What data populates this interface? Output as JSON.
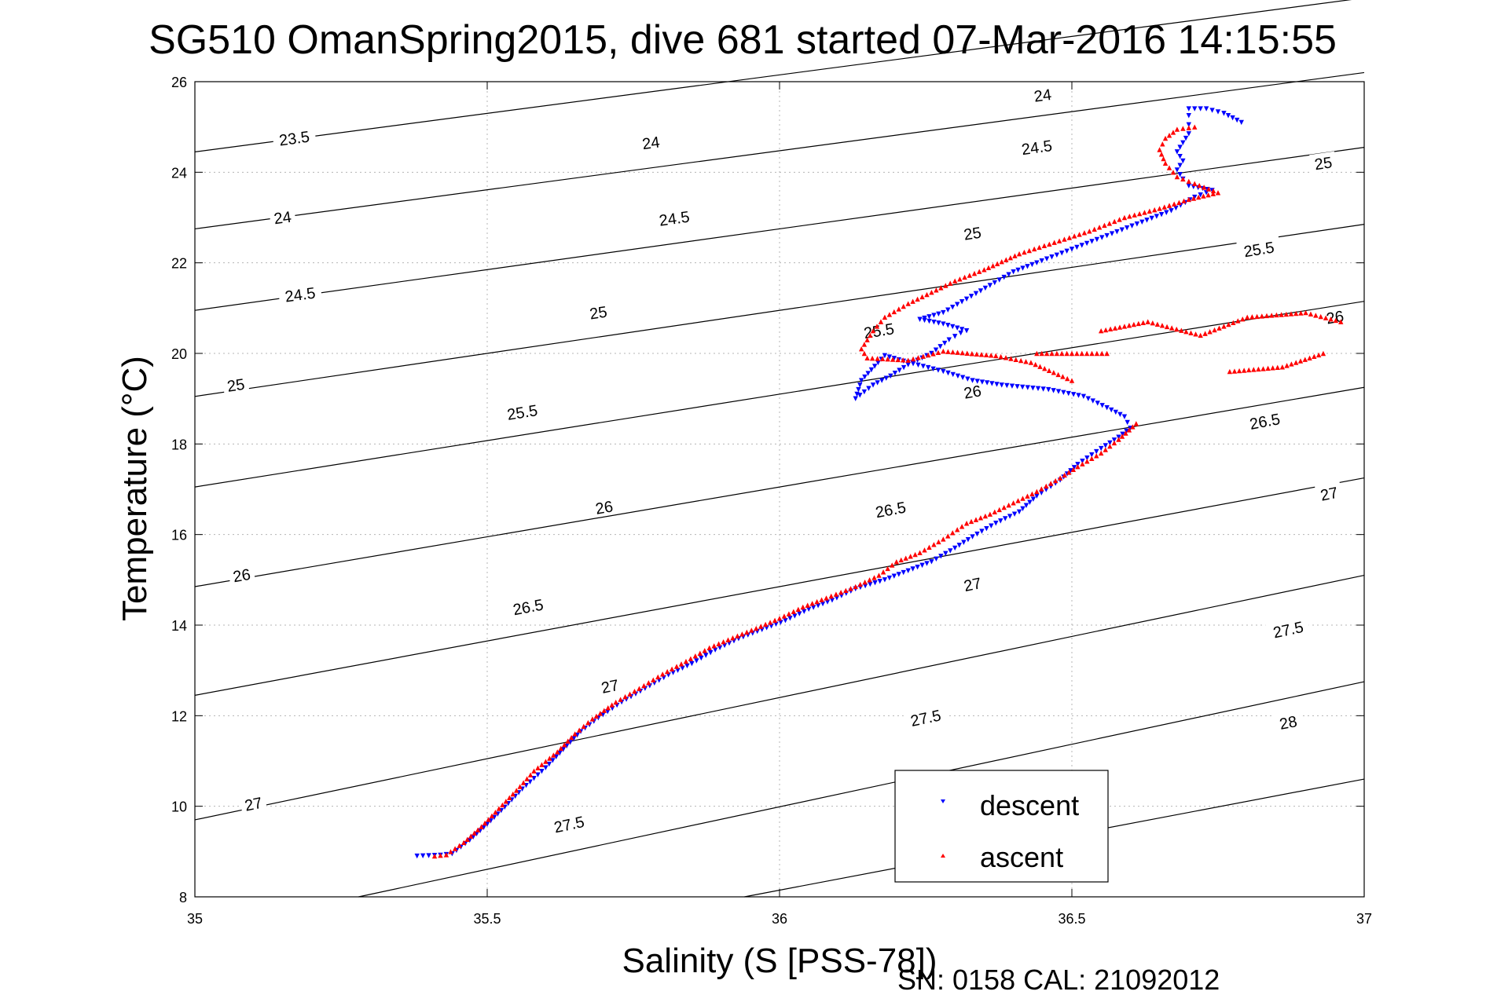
{
  "chart_data": {
    "type": "scatter",
    "title": "SG510 OmanSpring2015, dive 681 started 07-Mar-2016 14:15:55",
    "xlabel": "Salinity (S [PSS-78])",
    "ylabel": "Temperature (°C)",
    "footer": "SN: 0158  CAL: 21092012",
    "xlim": [
      35,
      37
    ],
    "ylim": [
      8,
      26
    ],
    "xticks": [
      35,
      35.5,
      36,
      36.5,
      37
    ],
    "yticks": [
      8,
      10,
      12,
      14,
      16,
      18,
      20,
      22,
      24,
      26
    ],
    "xtick_labels": [
      "35",
      "35.5",
      "36",
      "36.5",
      "37"
    ],
    "ytick_labels": [
      "8",
      "10",
      "12",
      "14",
      "16",
      "18",
      "20",
      "22",
      "24",
      "26"
    ],
    "grid": true,
    "legend_position": "bottom-right",
    "contours": [
      {
        "label": "23.5",
        "points": [
          [
            35.0,
            24.45
          ],
          [
            37.0,
            27.85
          ]
        ],
        "label_at": [
          [
            35.17,
            24.75
          ]
        ]
      },
      {
        "label": "24",
        "points": [
          [
            35.0,
            22.75
          ],
          [
            37.0,
            26.2
          ]
        ],
        "label_at": [
          [
            35.15,
            23.0
          ],
          [
            35.78,
            24.65
          ],
          [
            36.45,
            25.7
          ]
        ]
      },
      {
        "label": "24.5",
        "points": [
          [
            35.0,
            20.95
          ],
          [
            37.0,
            24.55
          ]
        ],
        "label_at": [
          [
            35.18,
            21.3
          ],
          [
            35.82,
            22.98
          ],
          [
            36.44,
            24.55
          ]
        ]
      },
      {
        "label": "25",
        "points": [
          [
            35.0,
            19.05
          ],
          [
            37.0,
            22.85
          ]
        ],
        "label_at": [
          [
            35.07,
            19.3
          ],
          [
            35.69,
            20.9
          ],
          [
            36.33,
            22.65
          ],
          [
            36.93,
            24.2
          ]
        ]
      },
      {
        "label": "25.5",
        "points": [
          [
            35.0,
            17.05
          ],
          [
            37.0,
            21.15
          ]
        ],
        "label_at": [
          [
            35.56,
            18.7
          ],
          [
            36.17,
            20.5
          ],
          [
            36.82,
            22.3
          ]
        ]
      },
      {
        "label": "26",
        "points": [
          [
            35.0,
            14.85
          ],
          [
            37.0,
            19.25
          ]
        ],
        "label_at": [
          [
            35.08,
            15.1
          ],
          [
            35.7,
            16.6
          ],
          [
            36.33,
            19.15
          ],
          [
            36.95,
            20.8
          ]
        ]
      },
      {
        "label": "26.5",
        "points": [
          [
            35.0,
            12.45
          ],
          [
            37.0,
            17.25
          ]
        ],
        "label_at": [
          [
            35.57,
            14.4
          ],
          [
            36.19,
            16.55
          ],
          [
            36.83,
            18.5
          ]
        ]
      },
      {
        "label": "27",
        "points": [
          [
            35.0,
            9.7
          ],
          [
            37.0,
            15.1
          ]
        ],
        "label_at": [
          [
            35.1,
            10.05
          ],
          [
            35.71,
            12.65
          ],
          [
            36.33,
            14.9
          ],
          [
            36.94,
            16.9
          ]
        ]
      },
      {
        "label": "27.5",
        "points": [
          [
            35.28,
            8.0
          ],
          [
            37.0,
            12.75
          ]
        ],
        "label_at": [
          [
            35.64,
            9.6
          ],
          [
            36.25,
            11.95
          ],
          [
            36.87,
            13.9
          ]
        ]
      },
      {
        "label": "28",
        "points": [
          [
            35.94,
            8.0
          ],
          [
            37.0,
            10.6
          ]
        ],
        "label_at": [
          [
            36.87,
            11.85
          ]
        ]
      }
    ],
    "series": [
      {
        "name": "descent",
        "color": "#0000ff",
        "marker": "triangle-down",
        "points": [
          [
            35.38,
            8.9
          ],
          [
            35.42,
            8.92
          ],
          [
            35.44,
            8.95
          ],
          [
            35.47,
            9.25
          ],
          [
            35.5,
            9.6
          ],
          [
            35.53,
            9.98
          ],
          [
            35.56,
            10.38
          ],
          [
            35.6,
            10.85
          ],
          [
            35.63,
            11.25
          ],
          [
            35.66,
            11.65
          ],
          [
            35.69,
            11.95
          ],
          [
            35.73,
            12.3
          ],
          [
            35.77,
            12.6
          ],
          [
            35.81,
            12.9
          ],
          [
            35.85,
            13.15
          ],
          [
            35.89,
            13.45
          ],
          [
            35.93,
            13.7
          ],
          [
            35.97,
            13.9
          ],
          [
            36.01,
            14.1
          ],
          [
            36.05,
            14.35
          ],
          [
            36.09,
            14.55
          ],
          [
            36.13,
            14.8
          ],
          [
            36.18,
            15.0
          ],
          [
            36.22,
            15.2
          ],
          [
            36.26,
            15.4
          ],
          [
            36.3,
            15.7
          ],
          [
            36.33,
            15.95
          ],
          [
            36.37,
            16.25
          ],
          [
            36.41,
            16.5
          ],
          [
            36.44,
            16.85
          ],
          [
            36.48,
            17.2
          ],
          [
            36.51,
            17.55
          ],
          [
            36.55,
            17.9
          ],
          [
            36.58,
            18.15
          ],
          [
            36.6,
            18.35
          ],
          [
            36.59,
            18.6
          ],
          [
            36.56,
            18.8
          ],
          [
            36.52,
            19.05
          ],
          [
            36.46,
            19.2
          ],
          [
            36.38,
            19.3
          ],
          [
            36.33,
            19.4
          ],
          [
            36.28,
            19.6
          ],
          [
            36.22,
            19.8
          ],
          [
            36.18,
            19.95
          ],
          [
            36.14,
            19.4
          ],
          [
            36.13,
            19.0
          ],
          [
            36.16,
            19.3
          ],
          [
            36.19,
            19.5
          ],
          [
            36.22,
            19.75
          ],
          [
            36.26,
            20.0
          ],
          [
            36.29,
            20.3
          ],
          [
            36.31,
            20.45
          ],
          [
            36.32,
            20.5
          ],
          [
            36.28,
            20.65
          ],
          [
            36.24,
            20.75
          ],
          [
            36.28,
            20.9
          ],
          [
            36.32,
            21.2
          ],
          [
            36.36,
            21.5
          ],
          [
            36.4,
            21.8
          ],
          [
            36.44,
            22.0
          ],
          [
            36.5,
            22.3
          ],
          [
            36.56,
            22.6
          ],
          [
            36.62,
            22.9
          ],
          [
            36.67,
            23.15
          ],
          [
            36.71,
            23.45
          ],
          [
            36.74,
            23.6
          ],
          [
            36.7,
            23.7
          ],
          [
            36.69,
            23.85
          ],
          [
            36.68,
            24.05
          ],
          [
            36.69,
            24.25
          ],
          [
            36.68,
            24.45
          ],
          [
            36.69,
            24.65
          ],
          [
            36.7,
            24.85
          ],
          [
            36.7,
            25.05
          ],
          [
            36.7,
            25.25
          ],
          [
            36.7,
            25.4
          ],
          [
            36.73,
            25.4
          ],
          [
            36.76,
            25.3
          ],
          [
            36.79,
            25.1
          ]
        ]
      },
      {
        "name": "ascent",
        "color": "#ff0000",
        "marker": "triangle-up",
        "points": [
          [
            35.41,
            8.9
          ],
          [
            35.43,
            8.93
          ],
          [
            35.46,
            9.2
          ],
          [
            35.49,
            9.55
          ],
          [
            35.52,
            9.95
          ],
          [
            35.55,
            10.35
          ],
          [
            35.58,
            10.78
          ],
          [
            35.62,
            11.2
          ],
          [
            35.65,
            11.6
          ],
          [
            35.68,
            11.93
          ],
          [
            35.72,
            12.3
          ],
          [
            35.76,
            12.6
          ],
          [
            35.8,
            12.92
          ],
          [
            35.84,
            13.2
          ],
          [
            35.88,
            13.5
          ],
          [
            35.92,
            13.72
          ],
          [
            35.96,
            13.93
          ],
          [
            36.0,
            14.15
          ],
          [
            36.04,
            14.4
          ],
          [
            36.08,
            14.6
          ],
          [
            36.13,
            14.85
          ],
          [
            36.17,
            15.1
          ],
          [
            36.2,
            15.4
          ],
          [
            36.24,
            15.6
          ],
          [
            36.28,
            15.9
          ],
          [
            36.32,
            16.25
          ],
          [
            36.36,
            16.45
          ],
          [
            36.4,
            16.7
          ],
          [
            36.44,
            16.95
          ],
          [
            36.48,
            17.25
          ],
          [
            36.51,
            17.5
          ],
          [
            36.55,
            17.8
          ],
          [
            36.58,
            18.1
          ],
          [
            36.61,
            18.45
          ],
          [
            36.5,
            19.4
          ],
          [
            36.43,
            19.8
          ],
          [
            36.37,
            19.95
          ],
          [
            36.28,
            20.05
          ],
          [
            36.22,
            19.85
          ],
          [
            36.15,
            19.9
          ],
          [
            36.14,
            20.1
          ],
          [
            36.16,
            20.5
          ],
          [
            36.18,
            20.8
          ],
          [
            36.22,
            21.1
          ],
          [
            36.26,
            21.35
          ],
          [
            36.3,
            21.6
          ],
          [
            36.35,
            21.85
          ],
          [
            36.41,
            22.2
          ],
          [
            36.47,
            22.45
          ],
          [
            36.53,
            22.7
          ],
          [
            36.59,
            23.0
          ],
          [
            36.65,
            23.2
          ],
          [
            36.7,
            23.4
          ],
          [
            36.75,
            23.55
          ],
          [
            36.71,
            23.75
          ],
          [
            36.68,
            23.9
          ],
          [
            36.66,
            24.2
          ],
          [
            36.65,
            24.5
          ],
          [
            36.66,
            24.75
          ],
          [
            36.68,
            24.95
          ],
          [
            36.71,
            25.0
          ],
          [
            36.55,
            20.5
          ],
          [
            36.63,
            20.7
          ],
          [
            36.72,
            20.4
          ],
          [
            36.8,
            20.8
          ],
          [
            36.9,
            20.9
          ],
          [
            36.96,
            20.7
          ],
          [
            36.77,
            19.6
          ],
          [
            36.86,
            19.7
          ],
          [
            36.93,
            20.0
          ],
          [
            36.56,
            20.0
          ],
          [
            36.44,
            20.0
          ]
        ]
      }
    ]
  }
}
